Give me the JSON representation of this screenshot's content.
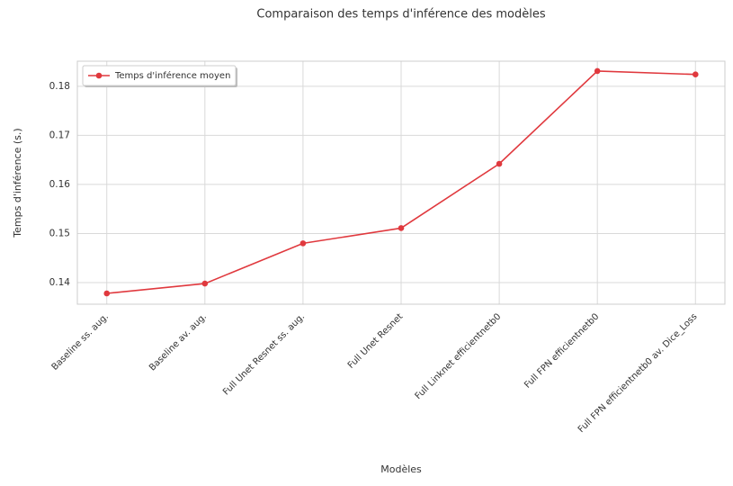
{
  "chart_data": {
    "type": "line",
    "title": "Comparaison des temps d'inférence des modèles",
    "x_label": "Modèles",
    "y_label": "Temps d'inférence (s.)",
    "categories": [
      "Baseline ss. aug.",
      "Baseline av. aug.",
      "Full Unet Resnet ss. aug.",
      "Full Unet Resnet",
      "Full Linknet efficientnetb0",
      "Full FPN efficientnetb0",
      "Full FPN efficientnetb0 av. Dice_Loss"
    ],
    "series": [
      {
        "name": "Temps d'inférence moyen",
        "color": "#e0393e",
        "values": [
          0.1378,
          0.1398,
          0.148,
          0.1511,
          0.1642,
          0.1831,
          0.1824
        ]
      }
    ],
    "ylim": [
      0.1356,
      0.1851
    ],
    "yticks": [
      0.14,
      0.15,
      0.16,
      0.17,
      0.18
    ],
    "grid": true,
    "legend": "upper left"
  }
}
